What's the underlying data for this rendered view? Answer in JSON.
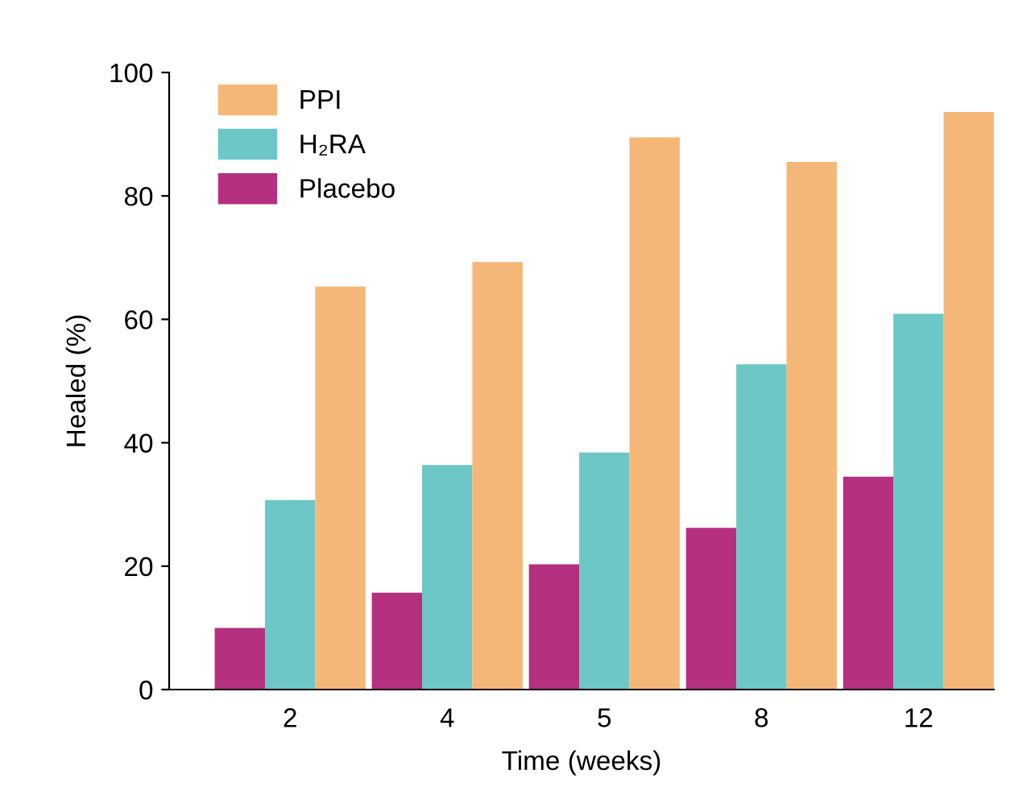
{
  "chart_data": {
    "type": "bar",
    "xlabel": "Time (weeks)",
    "ylabel": "Healed (%)",
    "categories": [
      "2",
      "4",
      "5",
      "8",
      "12"
    ],
    "series": [
      {
        "name": "Placebo",
        "color": "#b5307e",
        "values": [
          10,
          15.7,
          20.3,
          26.2,
          34.5
        ]
      },
      {
        "name": "H₂RA",
        "color": "#6cc7c6",
        "values": [
          30.7,
          36.4,
          38.4,
          52.7,
          60.9
        ]
      },
      {
        "name": "PPI",
        "color": "#f5b778",
        "values": [
          65.3,
          69.3,
          89.5,
          85.5,
          93.6
        ]
      }
    ],
    "ylim": [
      0,
      100
    ],
    "yticks": [
      0,
      20,
      40,
      60,
      80,
      100
    ],
    "grid": false,
    "legend": "top left"
  }
}
